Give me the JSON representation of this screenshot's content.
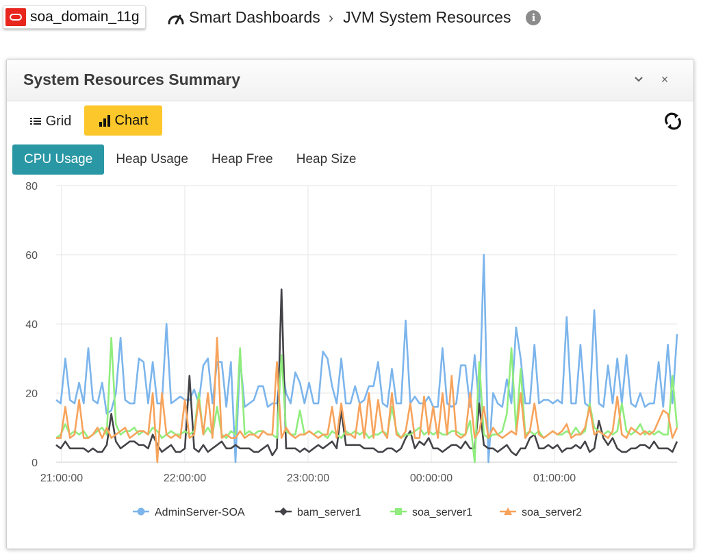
{
  "header": {
    "domain": "soa_domain_11g",
    "breadcrumb_root": "Smart Dashboards",
    "breadcrumb_page": "JVM System Resources",
    "info_glyph": "i"
  },
  "panel": {
    "title": "System Resources Summary",
    "collapse_icon": "chevron-down-icon",
    "close_glyph": "×",
    "view_toggle": {
      "grid_label": "Grid",
      "chart_label": "Chart",
      "active": "Chart"
    },
    "tabs": [
      "CPU Usage",
      "Heap Usage",
      "Heap Free",
      "Heap Size"
    ],
    "active_tab": "CPU Usage",
    "accent": "#2a97a5",
    "toggle_active_color": "#fcc72a"
  },
  "chart_data": {
    "type": "line",
    "x_tick_labels": [
      "21:00:00",
      "22:00:00",
      "23:00:00",
      "00:00:00",
      "01:00:00"
    ],
    "x_range": [
      "21:00:00",
      "01:59:00"
    ],
    "y_ticks": [
      0,
      20,
      40,
      60,
      80
    ],
    "ylim": [
      0,
      80
    ],
    "grid": true,
    "legend_position": "bottom",
    "series": [
      {
        "name": "AdminServer-SOA",
        "color": "#7cb5ec",
        "marker": "circle",
        "values": [
          18,
          17,
          30,
          18,
          17,
          23,
          17,
          33,
          18,
          17,
          23,
          14,
          15,
          20,
          36,
          18,
          17,
          17,
          30,
          29,
          17,
          29,
          17,
          17,
          40,
          17,
          18,
          19,
          18,
          18,
          21,
          17,
          28,
          30,
          17,
          29,
          29,
          16,
          29,
          0,
          30,
          16,
          17,
          18,
          22,
          22,
          16,
          17,
          17,
          29,
          20,
          17,
          26,
          23,
          17,
          23,
          17,
          17,
          32,
          30,
          22,
          17,
          30,
          17,
          17,
          22,
          17,
          18,
          22,
          22,
          29,
          17,
          16,
          27,
          17,
          17,
          41,
          17,
          19,
          17,
          17,
          19,
          16,
          16,
          33,
          17,
          16,
          17,
          28,
          28,
          16,
          31,
          16,
          60,
          0,
          20,
          17,
          16,
          24,
          17,
          39,
          30,
          17,
          17,
          34,
          17,
          18,
          18,
          17,
          18,
          17,
          42,
          17,
          17,
          34,
          17,
          16,
          44,
          17,
          16,
          28,
          17,
          30,
          17,
          31,
          17,
          16,
          20,
          16,
          17,
          17,
          29,
          16,
          34,
          17,
          37
        ]
      },
      {
        "name": "bam_server1",
        "color": "#434348",
        "marker": "diamond",
        "values": [
          5,
          4,
          6,
          4,
          4,
          4,
          4,
          3,
          4,
          3,
          3,
          5,
          14,
          6,
          4,
          5,
          6,
          6,
          5,
          5,
          4,
          8,
          5,
          3,
          4,
          5,
          3,
          3,
          4,
          25,
          4,
          3,
          5,
          3,
          4,
          5,
          6,
          4,
          4,
          5,
          4,
          4,
          4,
          3,
          3,
          4,
          5,
          2,
          4,
          50,
          4,
          4,
          4,
          3,
          4,
          3,
          4,
          5,
          4,
          5,
          6,
          4,
          15,
          5,
          5,
          5,
          5,
          4,
          4,
          4,
          3,
          3,
          4,
          4,
          3,
          4,
          7,
          9,
          4,
          6,
          5,
          7,
          4,
          4,
          3,
          4,
          5,
          5,
          4,
          6,
          4,
          4,
          17,
          5,
          4,
          4,
          3,
          4,
          5,
          3,
          2,
          4,
          4,
          7,
          8,
          4,
          4,
          5,
          4,
          5,
          3,
          4,
          4,
          5,
          4,
          6,
          3,
          4,
          12,
          7,
          5,
          7,
          4,
          3,
          3,
          4,
          4,
          5,
          5,
          4,
          6,
          4,
          4,
          4,
          3,
          6
        ]
      },
      {
        "name": "soa_server1",
        "color": "#90ed7d",
        "marker": "square",
        "values": [
          7,
          8,
          11,
          8,
          9,
          8,
          9,
          7,
          8,
          9,
          10,
          8,
          36,
          11,
          8,
          9,
          9,
          10,
          8,
          9,
          8,
          10,
          9,
          7,
          8,
          9,
          8,
          8,
          9,
          8,
          9,
          20,
          8,
          10,
          8,
          16,
          8,
          7,
          9,
          8,
          33,
          8,
          9,
          8,
          9,
          9,
          8,
          8,
          7,
          31,
          9,
          8,
          8,
          15,
          8,
          9,
          8,
          9,
          8,
          7,
          9,
          8,
          7,
          9,
          8,
          9,
          8,
          9,
          7,
          8,
          8,
          9,
          8,
          16,
          9,
          7,
          8,
          8,
          9,
          10,
          8,
          9,
          8,
          9,
          8,
          8,
          9,
          9,
          8,
          8,
          12,
          0,
          29,
          8,
          7,
          8,
          8,
          9,
          14,
          33,
          9,
          27,
          8,
          9,
          8,
          9,
          7,
          8,
          9,
          8,
          8,
          9,
          8,
          10,
          8,
          9,
          17,
          10,
          9,
          8,
          9,
          8,
          9,
          17,
          9,
          8,
          9,
          11,
          8,
          9,
          8,
          9,
          8,
          8,
          25,
          10
        ]
      },
      {
        "name": "soa_server2",
        "color": "#f7a35c",
        "marker": "triangle",
        "values": [
          7,
          7,
          16,
          7,
          8,
          18,
          7,
          7,
          8,
          10,
          7,
          10,
          7,
          8,
          9,
          10,
          7,
          8,
          9,
          9,
          8,
          20,
          0,
          20,
          8,
          7,
          8,
          7,
          18,
          7,
          8,
          18,
          8,
          20,
          7,
          36,
          7,
          8,
          7,
          7,
          9,
          7,
          8,
          8,
          7,
          9,
          8,
          8,
          29,
          7,
          10,
          8,
          7,
          8,
          8,
          9,
          8,
          7,
          8,
          8,
          16,
          7,
          17,
          8,
          8,
          7,
          17,
          7,
          20,
          7,
          18,
          9,
          7,
          20,
          8,
          7,
          9,
          17,
          7,
          7,
          19,
          8,
          16,
          7,
          20,
          8,
          25,
          8,
          7,
          8,
          20,
          7,
          9,
          16,
          7,
          10,
          8,
          7,
          8,
          9,
          8,
          20,
          7,
          9,
          17,
          8,
          7,
          8,
          9,
          8,
          9,
          11,
          7,
          8,
          8,
          10,
          16,
          8,
          9,
          8,
          7,
          9,
          19,
          8,
          7,
          10,
          9,
          8,
          9,
          8,
          9,
          12,
          15,
          14,
          7,
          10
        ]
      }
    ]
  }
}
